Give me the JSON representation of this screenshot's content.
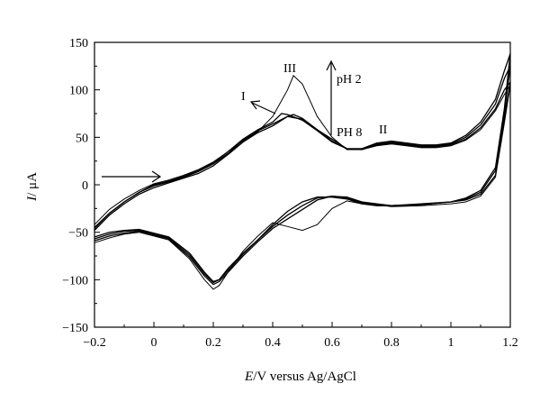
{
  "chart_data": {
    "type": "line",
    "title": "",
    "xlabel_italic": "E",
    "xlabel_rest": "/V versus Ag/AgCl",
    "ylabel_italic": "I",
    "ylabel_rest": "/ μA",
    "xlim": [
      -0.2,
      1.2
    ],
    "ylim": [
      -150,
      150
    ],
    "x_ticks": [
      -0.2,
      0,
      0.2,
      0.4,
      0.6,
      0.8,
      1,
      1.2
    ],
    "x_tick_labels": [
      "−0.2",
      "0",
      "0.2",
      "0.4",
      "0.6",
      "0.8",
      "1",
      "1.2"
    ],
    "y_ticks": [
      -150,
      -100,
      -50,
      0,
      50,
      100,
      150
    ],
    "y_tick_labels": [
      "−150",
      "−100",
      "−50",
      "0",
      "50",
      "100",
      "150"
    ],
    "grid": false,
    "annotations": {
      "peak_I": "I",
      "peak_II": "II",
      "peak_III": "III",
      "ph_top": "pH 2",
      "ph_bottom": "PH 8"
    },
    "series": [
      {
        "forward": [
          [
            -0.2,
            -48
          ],
          [
            -0.15,
            -32
          ],
          [
            -0.1,
            -20
          ],
          [
            -0.05,
            -10
          ],
          [
            0,
            -3
          ],
          [
            0.05,
            2
          ],
          [
            0.1,
            7
          ],
          [
            0.15,
            12
          ],
          [
            0.2,
            20
          ],
          [
            0.25,
            32
          ],
          [
            0.3,
            45
          ],
          [
            0.35,
            55
          ],
          [
            0.4,
            62
          ],
          [
            0.45,
            72
          ],
          [
            0.47,
            74
          ],
          [
            0.5,
            70
          ],
          [
            0.55,
            58
          ],
          [
            0.6,
            48
          ],
          [
            0.65,
            38
          ],
          [
            0.7,
            37
          ],
          [
            0.75,
            42
          ],
          [
            0.8,
            44
          ],
          [
            0.85,
            42
          ],
          [
            0.9,
            40
          ],
          [
            0.95,
            40
          ],
          [
            1.0,
            42
          ],
          [
            1.05,
            48
          ],
          [
            1.1,
            60
          ],
          [
            1.15,
            80
          ],
          [
            1.18,
            100
          ],
          [
            1.2,
            108
          ]
        ],
        "reverse": [
          [
            1.2,
            108
          ],
          [
            1.18,
            70
          ],
          [
            1.15,
            10
          ],
          [
            1.1,
            -10
          ],
          [
            1.05,
            -16
          ],
          [
            1.0,
            -18
          ],
          [
            0.9,
            -20
          ],
          [
            0.8,
            -22
          ],
          [
            0.75,
            -22
          ],
          [
            0.7,
            -20
          ],
          [
            0.65,
            -15
          ],
          [
            0.6,
            -13
          ],
          [
            0.55,
            -13
          ],
          [
            0.5,
            -18
          ],
          [
            0.45,
            -28
          ],
          [
            0.4,
            -42
          ],
          [
            0.35,
            -58
          ],
          [
            0.3,
            -72
          ],
          [
            0.25,
            -88
          ],
          [
            0.22,
            -100
          ],
          [
            0.2,
            -102
          ],
          [
            0.17,
            -92
          ],
          [
            0.12,
            -72
          ],
          [
            0.05,
            -55
          ],
          [
            -0.05,
            -47
          ],
          [
            -0.1,
            -48
          ],
          [
            -0.15,
            -50
          ],
          [
            -0.2,
            -55
          ]
        ]
      },
      {
        "forward": [
          [
            -0.2,
            -46
          ],
          [
            -0.15,
            -30
          ],
          [
            -0.1,
            -18
          ],
          [
            -0.05,
            -8
          ],
          [
            0,
            -1
          ],
          [
            0.05,
            3
          ],
          [
            0.1,
            8
          ],
          [
            0.15,
            14
          ],
          [
            0.2,
            22
          ],
          [
            0.25,
            33
          ],
          [
            0.3,
            47
          ],
          [
            0.35,
            57
          ],
          [
            0.4,
            64
          ],
          [
            0.45,
            72
          ],
          [
            0.5,
            69
          ],
          [
            0.55,
            58
          ],
          [
            0.6,
            46
          ],
          [
            0.65,
            38
          ],
          [
            0.7,
            38
          ],
          [
            0.75,
            43
          ],
          [
            0.8,
            45
          ],
          [
            0.85,
            43
          ],
          [
            0.9,
            41
          ],
          [
            0.95,
            41
          ],
          [
            1.0,
            43
          ],
          [
            1.05,
            50
          ],
          [
            1.1,
            63
          ],
          [
            1.15,
            85
          ],
          [
            1.18,
            112
          ],
          [
            1.2,
            125
          ]
        ],
        "reverse": [
          [
            1.2,
            125
          ],
          [
            1.18,
            75
          ],
          [
            1.15,
            15
          ],
          [
            1.1,
            -8
          ],
          [
            1.05,
            -15
          ],
          [
            1.0,
            -18
          ],
          [
            0.9,
            -21
          ],
          [
            0.8,
            -22
          ],
          [
            0.75,
            -21
          ],
          [
            0.7,
            -19
          ],
          [
            0.65,
            -14
          ],
          [
            0.6,
            -12
          ],
          [
            0.55,
            -14
          ],
          [
            0.5,
            -22
          ],
          [
            0.45,
            -32
          ],
          [
            0.4,
            -44
          ],
          [
            0.35,
            -58
          ],
          [
            0.3,
            -73
          ],
          [
            0.25,
            -90
          ],
          [
            0.22,
            -100
          ],
          [
            0.2,
            -103
          ],
          [
            0.17,
            -94
          ],
          [
            0.12,
            -74
          ],
          [
            0.05,
            -56
          ],
          [
            -0.05,
            -48
          ],
          [
            -0.1,
            -49
          ],
          [
            -0.15,
            -52
          ],
          [
            -0.2,
            -57
          ]
        ]
      },
      {
        "forward": [
          [
            -0.2,
            -45
          ],
          [
            -0.15,
            -30
          ],
          [
            -0.1,
            -18
          ],
          [
            -0.05,
            -8
          ],
          [
            0,
            0
          ],
          [
            0.05,
            4
          ],
          [
            0.1,
            9
          ],
          [
            0.15,
            15
          ],
          [
            0.2,
            23
          ],
          [
            0.25,
            35
          ],
          [
            0.3,
            48
          ],
          [
            0.35,
            58
          ],
          [
            0.4,
            66
          ],
          [
            0.43,
            75
          ],
          [
            0.45,
            74
          ],
          [
            0.5,
            68
          ],
          [
            0.55,
            57
          ],
          [
            0.6,
            45
          ],
          [
            0.65,
            38
          ],
          [
            0.7,
            38
          ],
          [
            0.75,
            44
          ],
          [
            0.8,
            46
          ],
          [
            0.85,
            44
          ],
          [
            0.9,
            42
          ],
          [
            0.95,
            42
          ],
          [
            1.0,
            44
          ],
          [
            1.05,
            52
          ],
          [
            1.1,
            66
          ],
          [
            1.15,
            90
          ],
          [
            1.18,
            120
          ],
          [
            1.2,
            138
          ]
        ],
        "reverse": [
          [
            1.2,
            138
          ],
          [
            1.18,
            80
          ],
          [
            1.15,
            18
          ],
          [
            1.1,
            -6
          ],
          [
            1.05,
            -14
          ],
          [
            1.0,
            -18
          ],
          [
            0.9,
            -21
          ],
          [
            0.8,
            -22
          ],
          [
            0.75,
            -20
          ],
          [
            0.7,
            -18
          ],
          [
            0.65,
            -13
          ],
          [
            0.6,
            -12
          ],
          [
            0.55,
            -16
          ],
          [
            0.5,
            -26
          ],
          [
            0.45,
            -36
          ],
          [
            0.4,
            -46
          ],
          [
            0.35,
            -60
          ],
          [
            0.3,
            -75
          ],
          [
            0.25,
            -92
          ],
          [
            0.22,
            -102
          ],
          [
            0.2,
            -105
          ],
          [
            0.17,
            -96
          ],
          [
            0.12,
            -76
          ],
          [
            0.05,
            -57
          ],
          [
            -0.05,
            -49
          ],
          [
            -0.1,
            -51
          ],
          [
            -0.15,
            -54
          ],
          [
            -0.2,
            -59
          ]
        ]
      },
      {
        "forward": [
          [
            -0.2,
            -42
          ],
          [
            -0.15,
            -26
          ],
          [
            -0.1,
            -15
          ],
          [
            -0.05,
            -6
          ],
          [
            0,
            1
          ],
          [
            0.05,
            5
          ],
          [
            0.1,
            10
          ],
          [
            0.15,
            16
          ],
          [
            0.2,
            24
          ],
          [
            0.25,
            35
          ],
          [
            0.3,
            46
          ],
          [
            0.35,
            56
          ],
          [
            0.4,
            72
          ],
          [
            0.45,
            100
          ],
          [
            0.47,
            115
          ],
          [
            0.5,
            106
          ],
          [
            0.55,
            72
          ],
          [
            0.6,
            50
          ],
          [
            0.65,
            37
          ],
          [
            0.7,
            37
          ],
          [
            0.75,
            41
          ],
          [
            0.8,
            43
          ],
          [
            0.85,
            41
          ],
          [
            0.9,
            39
          ],
          [
            0.95,
            39
          ],
          [
            1.0,
            41
          ],
          [
            1.05,
            47
          ],
          [
            1.1,
            58
          ],
          [
            1.15,
            78
          ],
          [
            1.18,
            95
          ],
          [
            1.2,
            105
          ]
        ],
        "reverse": [
          [
            1.2,
            105
          ],
          [
            1.18,
            65
          ],
          [
            1.15,
            8
          ],
          [
            1.1,
            -12
          ],
          [
            1.05,
            -18
          ],
          [
            1.0,
            -20
          ],
          [
            0.9,
            -22
          ],
          [
            0.8,
            -23
          ],
          [
            0.75,
            -21
          ],
          [
            0.7,
            -20
          ],
          [
            0.65,
            -17
          ],
          [
            0.6,
            -25
          ],
          [
            0.55,
            -42
          ],
          [
            0.5,
            -48
          ],
          [
            0.45,
            -44
          ],
          [
            0.4,
            -40
          ],
          [
            0.35,
            -54
          ],
          [
            0.3,
            -70
          ],
          [
            0.25,
            -92
          ],
          [
            0.22,
            -106
          ],
          [
            0.2,
            -110
          ],
          [
            0.17,
            -100
          ],
          [
            0.12,
            -78
          ],
          [
            0.05,
            -58
          ],
          [
            -0.05,
            -50
          ],
          [
            -0.1,
            -52
          ],
          [
            -0.15,
            -56
          ],
          [
            -0.2,
            -61
          ]
        ]
      }
    ]
  }
}
